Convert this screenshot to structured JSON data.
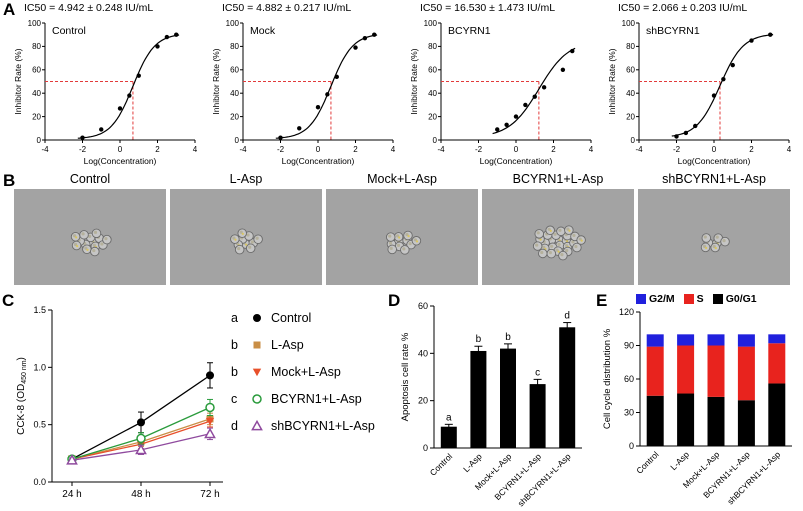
{
  "figure": {
    "panels": [
      "A",
      "B",
      "C",
      "D",
      "E"
    ]
  },
  "panel_b": {
    "labels": [
      "Control",
      "L-Asp",
      "Mock+L-Asp",
      "BCYRN1+L-Asp",
      "shBCYRN1+L-Asp"
    ],
    "cluster_cells": [
      14,
      10,
      11,
      26,
      7
    ]
  },
  "colors": {
    "curve": "#000000",
    "ic50_dashed": "#e23b3b",
    "bar_black": "#000000",
    "s_red": "#e8231e",
    "g2m_blue": "#2020dd"
  },
  "chart_data": [
    {
      "panel": "A",
      "type": "line",
      "subtype": "dose-response",
      "title": "IC50 = 4.942 ± 0.248 IU/mL",
      "label": "Control",
      "xlabel": "Log(Concentration)",
      "ylabel": "Inhibitor Rate (%)",
      "xlim": [
        -4,
        4
      ],
      "ylim": [
        0,
        100
      ],
      "xticks": [
        -4,
        -2,
        0,
        2,
        4
      ],
      "yticks": [
        0,
        20,
        40,
        60,
        80,
        100
      ],
      "ic50_log": 0.69,
      "points": {
        "x": [
          -2,
          -1,
          0,
          0.5,
          1,
          2,
          2.5,
          3
        ],
        "y": [
          2,
          9,
          27,
          38,
          55,
          80,
          88,
          90
        ]
      },
      "curve": {
        "bottom": 1,
        "top": 91,
        "hill": 0.75
      }
    },
    {
      "panel": "A",
      "type": "line",
      "subtype": "dose-response",
      "title": "IC50 = 4.882 ± 0.217 IU/mL",
      "label": "Mock",
      "xlabel": "Log(Concentration)",
      "ylabel": "Inhibitor Rate (%)",
      "xlim": [
        -4,
        4
      ],
      "ylim": [
        0,
        100
      ],
      "xticks": [
        -4,
        -2,
        0,
        2,
        4
      ],
      "yticks": [
        0,
        20,
        40,
        60,
        80,
        100
      ],
      "ic50_log": 0.69,
      "points": {
        "x": [
          -2,
          -1,
          0,
          0.5,
          1,
          2,
          2.5,
          3
        ],
        "y": [
          2,
          10,
          28,
          39,
          54,
          79,
          87,
          90
        ]
      },
      "curve": {
        "bottom": 1,
        "top": 91,
        "hill": 0.75
      }
    },
    {
      "panel": "A",
      "type": "line",
      "subtype": "dose-response",
      "title": "IC50 = 16.530 ± 1.473 IU/mL",
      "label": "BCYRN1",
      "xlabel": "Log(Concentration)",
      "ylabel": "Inhibitor Rate (%)",
      "xlim": [
        -4,
        4
      ],
      "ylim": [
        0,
        100
      ],
      "xticks": [
        -4,
        -2,
        0,
        2,
        4
      ],
      "yticks": [
        0,
        20,
        40,
        60,
        80,
        100
      ],
      "ic50_log": 1.22,
      "points": {
        "x": [
          -1,
          -0.5,
          0,
          0.5,
          1,
          1.5,
          2.5,
          3
        ],
        "y": [
          9,
          13,
          20,
          30,
          37,
          45,
          60,
          76
        ]
      },
      "curve": {
        "bottom": 2,
        "top": 85,
        "hill": 0.55
      }
    },
    {
      "panel": "A",
      "type": "line",
      "subtype": "dose-response",
      "title": "IC50 = 2.066 ± 0.203 IU/mL",
      "label": "shBCYRN1",
      "xlabel": "Log(Concentration)",
      "ylabel": "Inhibitor Rate (%)",
      "xlim": [
        -4,
        4
      ],
      "ylim": [
        0,
        100
      ],
      "xticks": [
        -4,
        -2,
        0,
        2,
        4
      ],
      "yticks": [
        0,
        20,
        40,
        60,
        80,
        100
      ],
      "ic50_log": 0.32,
      "points": {
        "x": [
          -2,
          -1.5,
          -1,
          0,
          0.5,
          1,
          2,
          3
        ],
        "y": [
          3,
          6,
          12,
          38,
          52,
          64,
          85,
          90
        ]
      },
      "curve": {
        "bottom": 2,
        "top": 91,
        "hill": 0.7
      }
    },
    {
      "panel": "C",
      "type": "line",
      "ylabel_pre": "CCK-8 (OD",
      "ylabel_sub": "450 nm",
      "ylabel_post": ")",
      "categories": [
        "24 h",
        "48 h",
        "72 h"
      ],
      "ylim": [
        0,
        1.5
      ],
      "yticks": [
        0,
        0.5,
        1,
        1.5
      ],
      "series": [
        {
          "letter": "a",
          "name": "Control",
          "color": "#000000",
          "marker": "circle-filled",
          "values": [
            0.2,
            0.52,
            0.93
          ],
          "err": [
            0.02,
            0.09,
            0.11
          ]
        },
        {
          "letter": "b",
          "name": "L-Asp",
          "color": "#c98e45",
          "marker": "square-filled",
          "values": [
            0.2,
            0.35,
            0.55
          ],
          "err": [
            0.02,
            0.04,
            0.05
          ]
        },
        {
          "letter": "b",
          "name": "Mock+L-Asp",
          "color": "#e8502a",
          "marker": "triangle-down-filled",
          "values": [
            0.2,
            0.33,
            0.53
          ],
          "err": [
            0.02,
            0.04,
            0.05
          ]
        },
        {
          "letter": "c",
          "name": "BCYRN1+L-Asp",
          "color": "#2a9b3c",
          "marker": "circle-open",
          "values": [
            0.2,
            0.38,
            0.65
          ],
          "err": [
            0.02,
            0.05,
            0.07
          ]
        },
        {
          "letter": "d",
          "name": "shBCYRN1+L-Asp",
          "color": "#8f4a9e",
          "marker": "triangle-open",
          "values": [
            0.19,
            0.28,
            0.42
          ],
          "err": [
            0.02,
            0.04,
            0.05
          ]
        }
      ]
    },
    {
      "panel": "D",
      "type": "bar",
      "ylabel": "Apoptosis cell rate %",
      "ylim": [
        0,
        60
      ],
      "yticks": [
        0,
        20,
        40,
        60
      ],
      "categories": [
        "Control",
        "L-Asp",
        "Mock+L-Asp",
        "BCYRN1+L-Asp",
        "shBCYRN1+L-Asp"
      ],
      "values": [
        9,
        41,
        42,
        27,
        51
      ],
      "errors": [
        1,
        2,
        2,
        2,
        2
      ],
      "letters": [
        "a",
        "b",
        "b",
        "c",
        "d"
      ],
      "bar_color": "#000000"
    },
    {
      "panel": "E",
      "type": "stacked-bar",
      "ylabel": "Cell cycle distribution %",
      "ylim": [
        0,
        120
      ],
      "yticks": [
        0,
        30,
        60,
        90,
        120
      ],
      "categories": [
        "Control",
        "L-Asp",
        "Mock+L-Asp",
        "BCYRN1+L-Asp",
        "shBCYRN1+L-Asp"
      ],
      "legend": [
        {
          "name": "G2/M",
          "color": "#2020dd"
        },
        {
          "name": "S",
          "color": "#e8231e"
        },
        {
          "name": "G0/G1",
          "color": "#000000"
        }
      ],
      "series": [
        {
          "name": "G0/G1",
          "values": [
            45,
            47,
            44,
            41,
            56
          ]
        },
        {
          "name": "S",
          "values": [
            44,
            43,
            46,
            48,
            36
          ]
        },
        {
          "name": "G2/M",
          "values": [
            11,
            10,
            10,
            11,
            8
          ]
        }
      ]
    }
  ]
}
